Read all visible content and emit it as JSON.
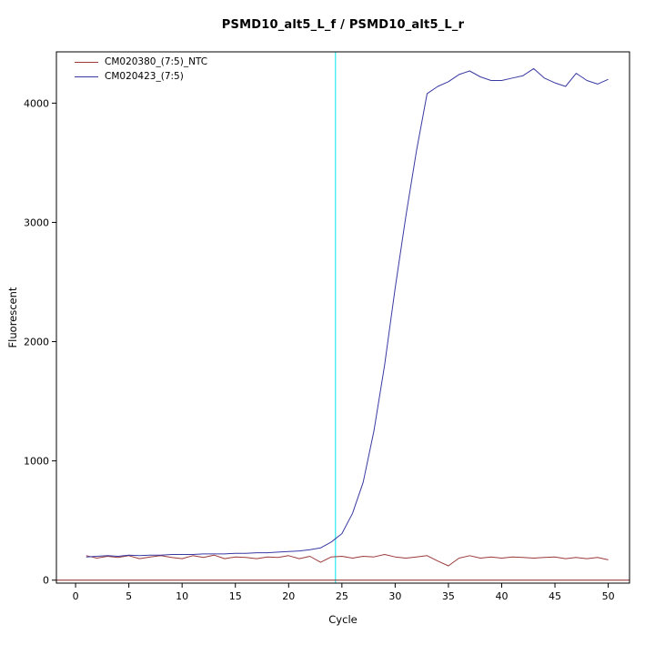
{
  "chart_data": {
    "type": "line",
    "title": "PSMD10_alt5_L_f / PSMD10_alt5_L_r",
    "xlabel": "Cycle",
    "ylabel": "Fluorescent",
    "xlim": [
      -1.8,
      52
    ],
    "ylim": [
      -25,
      4430
    ],
    "x_ticks": [
      0,
      5,
      10,
      15,
      20,
      25,
      30,
      35,
      40,
      45,
      50
    ],
    "y_ticks": [
      0,
      1000,
      2000,
      3000,
      4000
    ],
    "grid": false,
    "legend_position": "top-left",
    "threshold_line": {
      "orientation": "vertical",
      "x": 24.4,
      "color": "#00e5ee"
    },
    "baseline_line": {
      "orientation": "horizontal",
      "y": 0,
      "color": "#8b2323"
    },
    "x": [
      1,
      2,
      3,
      4,
      5,
      6,
      7,
      8,
      9,
      10,
      11,
      12,
      13,
      14,
      15,
      16,
      17,
      18,
      19,
      20,
      21,
      22,
      23,
      24,
      25,
      26,
      27,
      28,
      29,
      30,
      31,
      32,
      33,
      34,
      35,
      36,
      37,
      38,
      39,
      40,
      41,
      42,
      43,
      44,
      45,
      46,
      47,
      48,
      49,
      50
    ],
    "series": [
      {
        "name": "CM020380_(7:5)_NTC",
        "color": "#9c3a3a",
        "values": [
          205,
          185,
          200,
          190,
          205,
          180,
          195,
          205,
          190,
          180,
          205,
          190,
          210,
          180,
          195,
          190,
          180,
          195,
          190,
          205,
          180,
          200,
          150,
          195,
          200,
          185,
          200,
          195,
          215,
          195,
          185,
          195,
          205,
          160,
          120,
          185,
          205,
          185,
          195,
          185,
          195,
          190,
          185,
          190,
          195,
          180,
          190,
          180,
          190,
          170
        ]
      },
      {
        "name": "CM020423_(7:5)",
        "color": "#3939a3",
        "values": [
          195,
          200,
          205,
          200,
          210,
          205,
          210,
          210,
          215,
          215,
          215,
          220,
          220,
          220,
          225,
          225,
          230,
          230,
          235,
          240,
          245,
          255,
          270,
          320,
          390,
          560,
          820,
          1250,
          1800,
          2450,
          3050,
          3600,
          4080,
          4140,
          4180,
          4240,
          4270,
          4220,
          4190,
          4190,
          4210,
          4230,
          4290,
          4210,
          4170,
          4140,
          4250,
          4190,
          4160,
          4200
        ]
      }
    ]
  }
}
